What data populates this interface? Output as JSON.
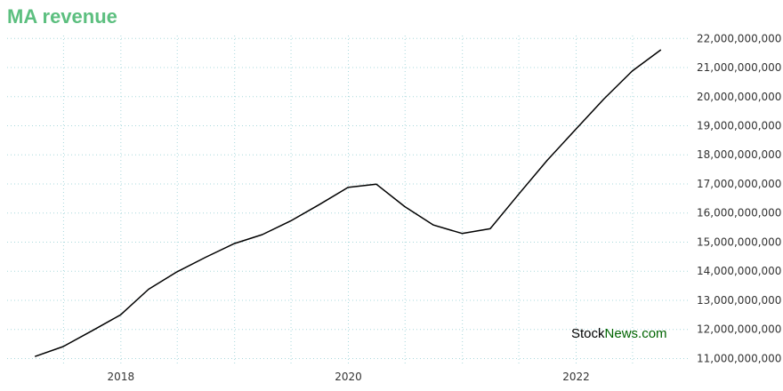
{
  "chart_data": {
    "type": "line",
    "title": "MA revenue",
    "xlabel": "",
    "ylabel": "",
    "x": [
      "2017-03-31",
      "2017-06-30",
      "2017-09-30",
      "2017-12-31",
      "2018-03-31",
      "2018-06-30",
      "2018-09-30",
      "2018-12-31",
      "2019-03-31",
      "2019-06-30",
      "2019-09-30",
      "2019-12-31",
      "2020-03-31",
      "2020-06-30",
      "2020-09-30",
      "2020-12-31",
      "2021-03-31",
      "2021-06-30",
      "2021-09-30",
      "2021-12-31",
      "2022-03-31",
      "2022-06-30",
      "2022-09-30"
    ],
    "x_ticks": [
      "2018",
      "2020",
      "2022"
    ],
    "ylim": [
      10800000000,
      22100000000
    ],
    "y_ticks": [
      "11,000,000,000",
      "12,000,000,000",
      "13,000,000,000",
      "14,000,000,000",
      "15,000,000,000",
      "16,000,000,000",
      "17,000,000,000",
      "18,000,000,000",
      "19,000,000,000",
      "20,000,000,000",
      "21,000,000,000",
      "22,000,000,000"
    ],
    "series": [
      {
        "values": [
          11070000000,
          11410000000,
          11950000000,
          12500000000,
          13380000000,
          13980000000,
          14480000000,
          14950000000,
          15260000000,
          15730000000,
          16290000000,
          16880000000,
          16990000000,
          16220000000,
          15590000000,
          15300000000,
          15460000000,
          16640000000,
          17810000000,
          18880000000,
          19920000000,
          20880000000,
          21610000000
        ]
      }
    ],
    "grid": true,
    "y_axis_side": "right",
    "colors": {
      "line": "#000000",
      "accent": "#5cbf7f",
      "grid": "#a8d8dc"
    }
  },
  "watermark": {
    "part1": "Stock",
    "part2": "News.com"
  },
  "colors": {
    "title": "#5cbf7f",
    "axis": "#5cbf7f",
    "watermark_dark": "#000000",
    "watermark_green": "#006400"
  }
}
